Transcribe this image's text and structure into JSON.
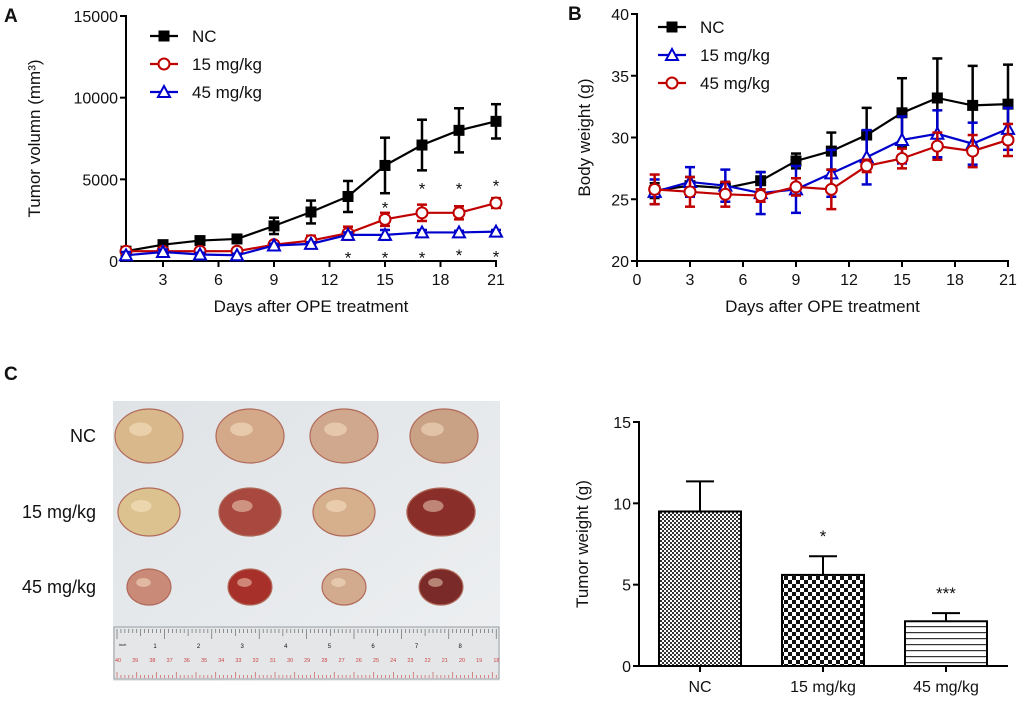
{
  "panels": {
    "a": "A",
    "b": "B",
    "c": "C"
  },
  "photo": {
    "row_labels": [
      "NC",
      "15 mg/kg",
      "45 mg/kg"
    ],
    "ruler_unit": "inch",
    "ruler_inch_labels": [
      "1",
      "2",
      "3",
      "4",
      "5",
      "6",
      "7",
      "8"
    ],
    "ruler_cm_labels": [
      "40",
      "39",
      "38",
      "37",
      "36",
      "35",
      "34",
      "33",
      "32",
      "31",
      "30",
      "29",
      "28",
      "27",
      "26",
      "25",
      "24",
      "23",
      "22",
      "21",
      "20",
      "19",
      "18"
    ]
  },
  "chart_data": [
    {
      "id": "A",
      "type": "line",
      "xlabel": "Days after OPE treatment",
      "ylabel": "Tumor volumn (mm³)",
      "xlim": [
        1,
        21
      ],
      "ylim": [
        0,
        15000
      ],
      "xticks": [
        3,
        6,
        9,
        12,
        15,
        18,
        21
      ],
      "yticks": [
        0,
        5000,
        10000,
        15000
      ],
      "legend": "top-left",
      "grid": false,
      "x": [
        1,
        3,
        5,
        7,
        9,
        11,
        13,
        15,
        17,
        19,
        21
      ],
      "series": [
        {
          "name": "NC",
          "color": "#000000",
          "marker": "filled-square",
          "values": [
            600,
            1000,
            1250,
            1350,
            2150,
            3000,
            3950,
            5850,
            7100,
            8000,
            8550
          ],
          "errors": [
            100,
            100,
            100,
            100,
            500,
            700,
            950,
            1700,
            1550,
            1350,
            1050
          ]
        },
        {
          "name": "15 mg/kg",
          "color": "#c00000",
          "marker": "open-circle",
          "values": [
            600,
            600,
            600,
            600,
            1000,
            1250,
            1700,
            2550,
            2950,
            2950,
            3550
          ],
          "errors": [
            100,
            100,
            100,
            100,
            200,
            300,
            400,
            400,
            500,
            400,
            300
          ]
        },
        {
          "name": "45 mg/kg",
          "color": "#0000cc",
          "marker": "open-triangle",
          "values": [
            350,
            550,
            400,
            350,
            950,
            1050,
            1600,
            1600,
            1750,
            1750,
            1800
          ],
          "errors": [
            200,
            150,
            100,
            100,
            100,
            100,
            150,
            300,
            150,
            100,
            100
          ]
        }
      ],
      "annotations": [
        {
          "x": 15,
          "y": 3400,
          "text": "*"
        },
        {
          "x": 17,
          "y": 4550,
          "text": "*"
        },
        {
          "x": 19,
          "y": 4550,
          "text": "*"
        },
        {
          "x": 21,
          "y": 4750,
          "text": "*"
        },
        {
          "x": 13,
          "y": 350,
          "text": "*"
        },
        {
          "x": 15,
          "y": 350,
          "text": "*"
        },
        {
          "x": 17,
          "y": 350,
          "text": "*"
        },
        {
          "x": 19,
          "y": 500,
          "text": "*"
        },
        {
          "x": 21,
          "y": 400,
          "text": "*"
        }
      ]
    },
    {
      "id": "B",
      "type": "line",
      "xlabel": "Days after OPE treatment",
      "ylabel": "Body weight (g)",
      "xlim": [
        0,
        21
      ],
      "ylim": [
        20,
        40
      ],
      "xticks": [
        0,
        3,
        6,
        9,
        12,
        15,
        18,
        21
      ],
      "yticks": [
        20,
        25,
        30,
        35,
        40
      ],
      "legend": "top-left",
      "grid": false,
      "x": [
        1,
        3,
        5,
        7,
        9,
        11,
        13,
        15,
        17,
        19,
        21
      ],
      "series": [
        {
          "name": "NC",
          "color": "#000000",
          "marker": "filled-square",
          "values": [
            25.7,
            26.1,
            25.9,
            26.5,
            28.1,
            28.9,
            30.2,
            32.0,
            33.2,
            32.6,
            32.7
          ],
          "errors": [
            0.6,
            0.7,
            0.5,
            0.7,
            0.6,
            1.5,
            2.2,
            2.8,
            3.2,
            3.2,
            3.2
          ]
        },
        {
          "name": "15 mg/kg",
          "color": "#0000cc",
          "marker": "open-triangle",
          "values": [
            25.6,
            26.4,
            26.1,
            25.5,
            25.8,
            27.1,
            28.4,
            29.8,
            30.3,
            29.5,
            30.7
          ],
          "errors": [
            1.0,
            1.2,
            1.3,
            1.7,
            1.9,
            1.9,
            2.2,
            1.9,
            1.9,
            1.7,
            1.7
          ]
        },
        {
          "name": "45 mg/kg",
          "color": "#c00000",
          "marker": "open-circle",
          "values": [
            25.8,
            25.6,
            25.4,
            25.3,
            26.0,
            25.8,
            27.7,
            28.3,
            29.3,
            28.9,
            29.8
          ],
          "errors": [
            1.2,
            1.2,
            1.0,
            0.5,
            0.7,
            1.6,
            0.5,
            0.8,
            1.1,
            1.3,
            1.3
          ]
        }
      ],
      "annotations": []
    },
    {
      "id": "C",
      "type": "bar",
      "xlabel": "",
      "ylabel": "Tumor weight (g)",
      "ylim": [
        0,
        15
      ],
      "yticks": [
        0,
        5,
        10,
        15
      ],
      "grid": false,
      "categories": [
        "NC",
        "15 mg/kg",
        "45 mg/kg"
      ],
      "values": [
        9.5,
        5.6,
        2.75
      ],
      "errors": [
        1.85,
        1.15,
        0.5
      ],
      "fills": [
        "fine-checker",
        "coarse-checker",
        "horizontal-lines"
      ],
      "annotations": [
        "",
        "*",
        "***"
      ]
    }
  ]
}
